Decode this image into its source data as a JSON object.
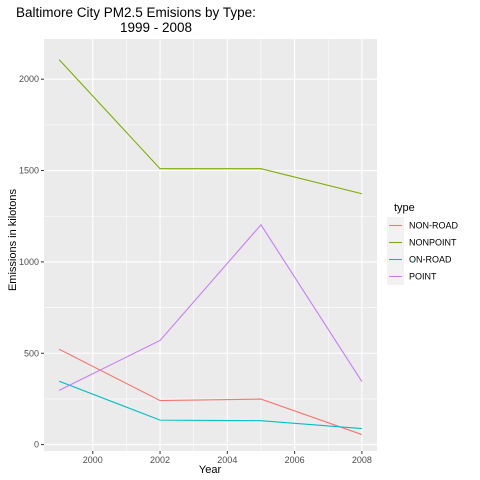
{
  "chart_data": {
    "type": "line",
    "title_lines": [
      "Baltimore City PM2.5 Emisions by Type:",
      "1999 - 2008"
    ],
    "xlabel": "Year",
    "ylabel": "Emissions in kilotons",
    "x": [
      1999,
      2002,
      2005,
      2008
    ],
    "xlim": [
      1998.55,
      2008.45
    ],
    "ylim": [
      -35,
      2220
    ],
    "xticks": [
      2000,
      2002,
      2004,
      2006,
      2008
    ],
    "yticks": [
      0,
      500,
      1000,
      1500,
      2000
    ],
    "legend_title": "type",
    "legend_position": "right",
    "grid": true,
    "panel_background": "#ebebeb",
    "series": [
      {
        "name": "NON-ROAD",
        "color": "#F8766D",
        "values": [
          522,
          241,
          249,
          55
        ]
      },
      {
        "name": "NONPOINT",
        "color": "#7CAE00",
        "values": [
          2107,
          1510,
          1510,
          1373
        ]
      },
      {
        "name": "ON-ROAD",
        "color": "#00BFC4",
        "values": [
          347,
          134,
          131,
          88
        ]
      },
      {
        "name": "POINT",
        "color": "#C77CFF",
        "values": [
          297,
          570,
          1203,
          345
        ]
      }
    ]
  }
}
